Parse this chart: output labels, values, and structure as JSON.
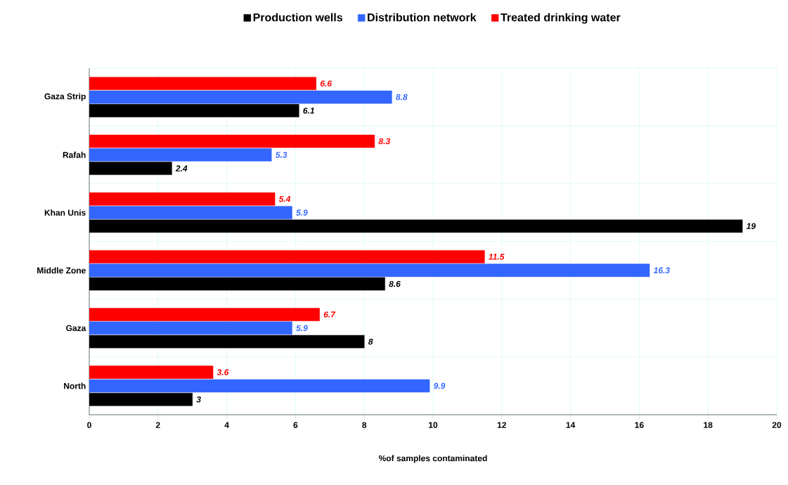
{
  "chart_data": {
    "type": "bar",
    "orientation": "horizontal",
    "categories": [
      "Gaza Strip",
      "Rafah",
      "Khan Unis",
      "Middle Zone",
      "Gaza",
      "North"
    ],
    "series": [
      {
        "name": "Production wells",
        "color": "#000000",
        "values": [
          6.1,
          2.4,
          19,
          8.6,
          8,
          3
        ]
      },
      {
        "name": "Distribution network",
        "color": "#3366ff",
        "values": [
          8.8,
          5.3,
          5.9,
          16.3,
          5.9,
          9.9
        ]
      },
      {
        "name": "Treated drinking water",
        "color": "#ff0000",
        "values": [
          6.6,
          8.3,
          5.4,
          11.5,
          6.7,
          3.6
        ]
      }
    ],
    "xlabel": "%of samples contaminated",
    "xlim": [
      0,
      20
    ],
    "xticks": [
      0,
      2,
      4,
      6,
      8,
      10,
      12,
      14,
      16,
      18,
      20
    ],
    "grid": true,
    "legend": "top",
    "data_labels": true
  }
}
